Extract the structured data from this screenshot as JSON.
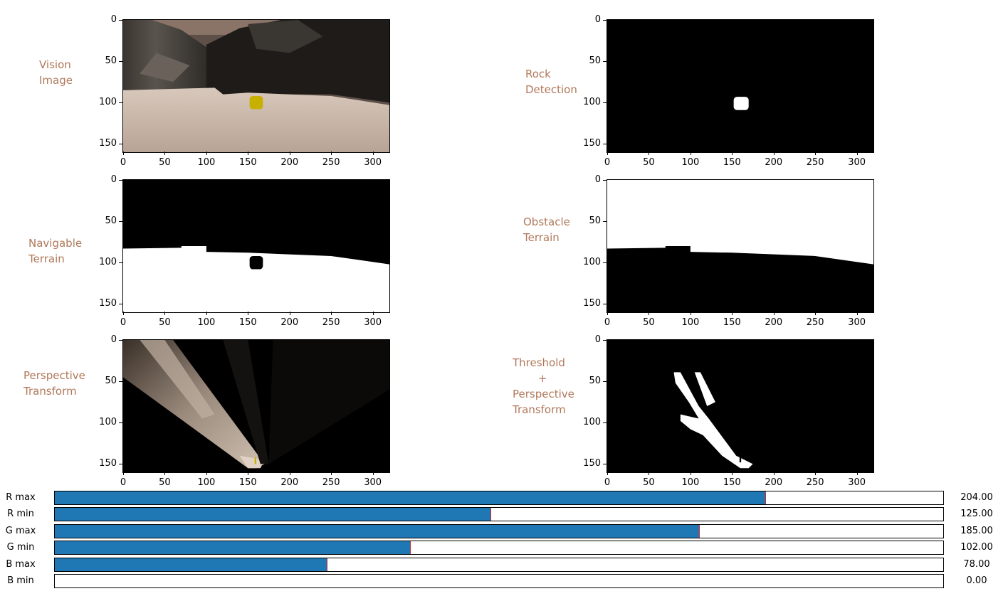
{
  "panels": {
    "vision": {
      "title_lines": [
        "Vision",
        "Image"
      ]
    },
    "rock": {
      "title_lines": [
        "Rock",
        "Detection"
      ]
    },
    "navigable": {
      "title_lines": [
        "Navigable",
        "Terrain"
      ]
    },
    "obstacle": {
      "title_lines": [
        "Obstacle",
        "Terrain"
      ]
    },
    "perspective": {
      "title_lines": [
        "Perspective",
        "Transform"
      ]
    },
    "threshold": {
      "title_lines": [
        "Threshold",
        "+",
        "Perspective",
        "Transform"
      ]
    }
  },
  "axes": {
    "x_ticks": [
      "0",
      "50",
      "100",
      "150",
      "200",
      "250",
      "300"
    ],
    "y_ticks": [
      "0",
      "50",
      "100",
      "150"
    ],
    "x_range": [
      0,
      320
    ],
    "y_range": [
      0,
      160
    ]
  },
  "sliders": [
    {
      "label": "R max",
      "value": 204,
      "value_text": "204.00",
      "min": 0,
      "max": 255
    },
    {
      "label": "R min",
      "value": 125,
      "value_text": "125.00",
      "min": 0,
      "max": 255
    },
    {
      "label": "G max",
      "value": 185,
      "value_text": "185.00",
      "min": 0,
      "max": 255
    },
    {
      "label": "G min",
      "value": 102,
      "value_text": "102.00",
      "min": 0,
      "max": 255
    },
    {
      "label": "B max",
      "value": 78,
      "value_text": "78.00",
      "min": 0,
      "max": 255
    },
    {
      "label": "B min",
      "value": 0,
      "value_text": "0.00",
      "min": 0,
      "max": 255
    }
  ],
  "colors": {
    "title_text": "#b0785a",
    "slider_fill": "#1f77b4",
    "slider_handle": "#d62728",
    "rock_yellow": "#c8b000",
    "sand": "#c9b5a6"
  }
}
